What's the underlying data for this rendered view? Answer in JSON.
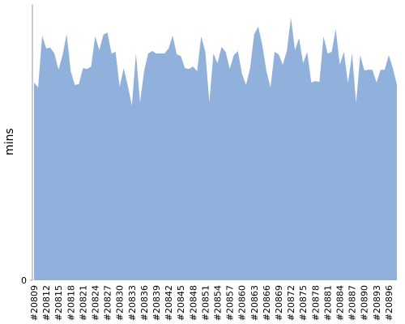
{
  "chart_data": {
    "type": "area",
    "y_label": "mins",
    "color": "#8fb1dc",
    "ylim": [
      0,
      100
    ],
    "yticks": [
      0
    ],
    "categories": [
      "#20809",
      null,
      null,
      "#20812",
      null,
      null,
      "#20815",
      null,
      null,
      "#20818",
      null,
      null,
      "#20821",
      null,
      null,
      "#20824",
      null,
      null,
      "#20827",
      null,
      null,
      "#20830",
      null,
      null,
      "#20833",
      null,
      null,
      "#20836",
      null,
      null,
      "#20839",
      null,
      null,
      "#20842",
      null,
      null,
      "#20845",
      null,
      null,
      "#20848",
      null,
      null,
      "#20851",
      null,
      null,
      "#20854",
      null,
      null,
      "#20857",
      null,
      null,
      "#20860",
      null,
      null,
      "#20863",
      null,
      null,
      "#20866",
      null,
      null,
      "#20869",
      null,
      null,
      "#20872",
      null,
      null,
      "#20875",
      null,
      null,
      "#20878",
      null,
      null,
      "#20881",
      null,
      null,
      "#20884",
      null,
      null,
      "#20887",
      null,
      null,
      "#20890",
      null,
      null,
      "#20893",
      null,
      null,
      "#20896",
      null,
      null
    ],
    "values": [
      71.6,
      69.8,
      88.6,
      83.9,
      84.2,
      82.1,
      76.2,
      81.5,
      89.1,
      75.7,
      70.7,
      71.0,
      76.8,
      76.5,
      77.4,
      88.3,
      83.3,
      88.9,
      89.7,
      82.1,
      82.7,
      70.1,
      76.8,
      70.4,
      63.3,
      82.1,
      64.5,
      75.7,
      82.1,
      83.0,
      82.1,
      82.1,
      82.1,
      83.9,
      88.6,
      81.8,
      81.2,
      76.8,
      76.5,
      77.4,
      75.7,
      88.3,
      82.7,
      64.5,
      82.1,
      78.6,
      84.5,
      82.7,
      76.5,
      81.5,
      83.0,
      74.8,
      70.7,
      76.8,
      89.1,
      91.8,
      85.0,
      75.7,
      69.8,
      82.7,
      81.8,
      78.0,
      83.0,
      95.0,
      83.3,
      87.7,
      78.6,
      82.7,
      71.6,
      72.1,
      71.8,
      88.3,
      82.1,
      82.7,
      90.9,
      78.0,
      82.7,
      71.3,
      82.1,
      64.2,
      81.5,
      76.0,
      76.2,
      76.2,
      71.6,
      76.2,
      76.2,
      81.5,
      76.8,
      70.7
    ]
  }
}
